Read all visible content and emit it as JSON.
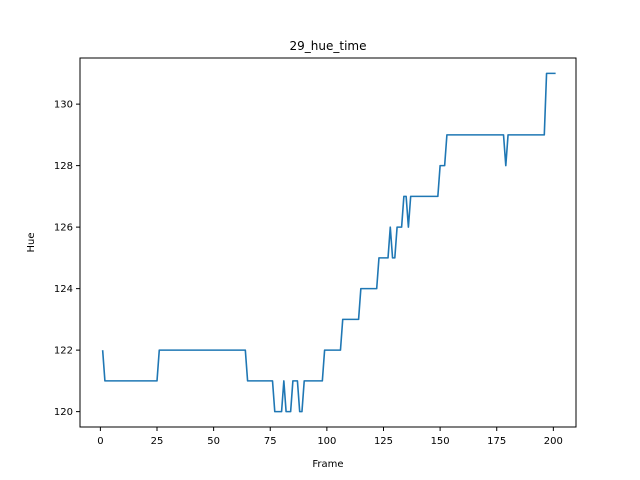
{
  "chart_data": {
    "type": "line",
    "title": "29_hue_time",
    "xlabel": "Frame",
    "ylabel": "Hue",
    "xlim": [
      -9,
      210
    ],
    "ylim": [
      119.5,
      131.5
    ],
    "xticks": [
      0,
      25,
      50,
      75,
      100,
      125,
      150,
      175,
      200
    ],
    "yticks": [
      120,
      122,
      124,
      126,
      128,
      130
    ],
    "grid": false,
    "line_color": "#1f77b4",
    "series": [
      {
        "points": [
          [
            1,
            122
          ],
          [
            2,
            121
          ],
          [
            25,
            121
          ],
          [
            26,
            122
          ],
          [
            64,
            122
          ],
          [
            65,
            121
          ],
          [
            76,
            121
          ],
          [
            77,
            120
          ],
          [
            80,
            120
          ],
          [
            81,
            121
          ],
          [
            82,
            120
          ],
          [
            84,
            120
          ],
          [
            85,
            121
          ],
          [
            87,
            121
          ],
          [
            88,
            120
          ],
          [
            89,
            120
          ],
          [
            90,
            121
          ],
          [
            98,
            121
          ],
          [
            99,
            122
          ],
          [
            106,
            122
          ],
          [
            107,
            123
          ],
          [
            114,
            123
          ],
          [
            115,
            124
          ],
          [
            122,
            124
          ],
          [
            123,
            125
          ],
          [
            127,
            125
          ],
          [
            128,
            126
          ],
          [
            129,
            125
          ],
          [
            130,
            125
          ],
          [
            131,
            126
          ],
          [
            133,
            126
          ],
          [
            134,
            127
          ],
          [
            135,
            127
          ],
          [
            136,
            126
          ],
          [
            137,
            127
          ],
          [
            149,
            127
          ],
          [
            150,
            128
          ],
          [
            152,
            128
          ],
          [
            153,
            129
          ],
          [
            178,
            129
          ],
          [
            179,
            128
          ],
          [
            180,
            129
          ],
          [
            196,
            129
          ],
          [
            197,
            131
          ],
          [
            201,
            131
          ]
        ]
      }
    ]
  }
}
